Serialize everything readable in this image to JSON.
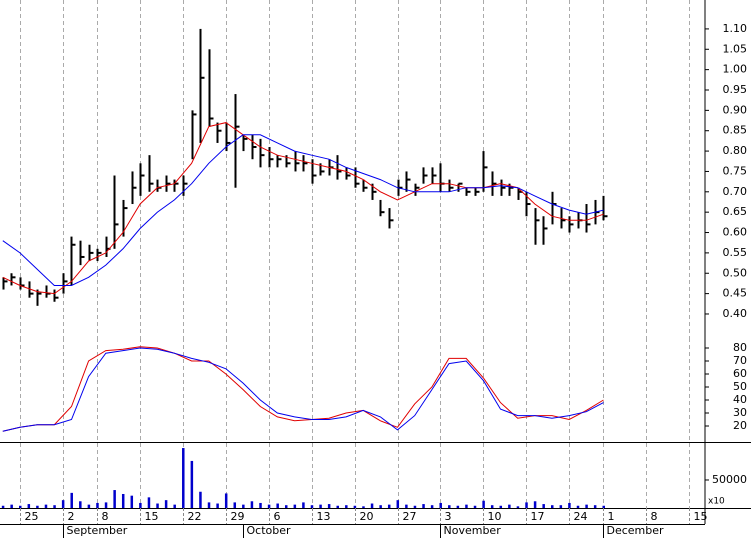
{
  "chart_data": [
    {
      "type": "hlc",
      "xlim": [
        -2.33,
        79.83
      ],
      "ylim": [
        0.341,
        1.171
      ],
      "yticks": [
        {
          "value": 0.4,
          "label": "0.40"
        },
        0.45,
        {
          "value": 0.5,
          "label": "0.50"
        },
        0.55,
        {
          "value": 0.6,
          "label": "0.60"
        },
        0.65,
        {
          "value": 0.7,
          "label": "0.70"
        },
        0.75,
        {
          "value": 0.8,
          "label": "0.80"
        },
        0.85,
        {
          "value": 0.9,
          "label": "0.90"
        },
        0.95,
        {
          "value": 1.0,
          "label": "1.00"
        },
        1.05,
        {
          "value": 1.1,
          "label": "1.10"
        }
      ],
      "grid": true,
      "color": "#000000",
      "x": [
        -2,
        -1,
        0,
        1,
        2,
        3,
        4,
        5,
        6,
        7,
        8,
        9,
        10,
        11,
        12,
        13,
        14,
        15,
        16,
        17,
        18,
        19,
        20,
        21,
        22,
        23,
        24,
        25,
        26,
        27,
        28,
        29,
        30,
        31,
        32,
        33,
        34,
        35,
        36,
        37,
        38,
        39,
        40,
        41,
        42,
        43,
        44,
        45,
        46,
        47,
        48,
        49,
        50,
        51,
        52,
        53,
        54,
        55,
        56,
        57,
        58,
        59,
        60,
        61,
        62,
        63,
        64,
        65,
        66,
        67,
        68
      ],
      "high": [
        0.49,
        0.5,
        0.49,
        0.48,
        0.46,
        0.47,
        0.46,
        0.5,
        0.59,
        0.58,
        0.57,
        0.56,
        0.59,
        0.74,
        0.68,
        0.75,
        0.77,
        0.79,
        0.73,
        0.74,
        0.73,
        0.74,
        0.9,
        1.1,
        1.05,
        0.87,
        0.87,
        0.94,
        0.84,
        0.84,
        0.83,
        0.81,
        0.79,
        0.79,
        0.8,
        0.79,
        0.78,
        0.77,
        0.78,
        0.79,
        0.76,
        0.76,
        0.73,
        0.72,
        0.68,
        0.66,
        0.73,
        0.75,
        0.72,
        0.76,
        0.76,
        0.77,
        0.73,
        0.72,
        0.71,
        0.71,
        0.8,
        0.75,
        0.73,
        0.72,
        0.71,
        0.7,
        0.66,
        0.64,
        0.7,
        0.66,
        0.64,
        0.65,
        0.67,
        0.68,
        0.69
      ],
      "low": [
        0.46,
        0.47,
        0.46,
        0.44,
        0.42,
        0.44,
        0.43,
        0.45,
        0.47,
        0.52,
        0.53,
        0.53,
        0.54,
        0.56,
        0.59,
        0.67,
        0.69,
        0.7,
        0.7,
        0.7,
        0.7,
        0.69,
        0.78,
        0.82,
        0.86,
        0.82,
        0.8,
        0.71,
        0.8,
        0.78,
        0.76,
        0.76,
        0.76,
        0.76,
        0.75,
        0.75,
        0.72,
        0.74,
        0.74,
        0.73,
        0.73,
        0.71,
        0.7,
        0.68,
        0.64,
        0.61,
        0.69,
        0.7,
        0.69,
        0.72,
        0.72,
        0.7,
        0.7,
        0.7,
        0.69,
        0.69,
        0.7,
        0.69,
        0.69,
        0.69,
        0.68,
        0.64,
        0.57,
        0.57,
        0.62,
        0.61,
        0.6,
        0.61,
        0.6,
        0.62,
        0.63
      ],
      "close": [
        0.48,
        0.49,
        0.47,
        0.45,
        0.45,
        0.45,
        0.44,
        0.48,
        0.57,
        0.54,
        0.55,
        0.55,
        0.56,
        0.62,
        0.66,
        0.71,
        0.74,
        0.72,
        0.71,
        0.72,
        0.72,
        0.72,
        0.89,
        0.98,
        0.88,
        0.85,
        0.82,
        0.86,
        0.83,
        0.81,
        0.79,
        0.78,
        0.78,
        0.77,
        0.77,
        0.77,
        0.74,
        0.75,
        0.76,
        0.75,
        0.74,
        0.72,
        0.71,
        0.7,
        0.65,
        0.63,
        0.71,
        0.73,
        0.71,
        0.74,
        0.74,
        0.72,
        0.71,
        0.72,
        0.7,
        0.7,
        0.76,
        0.72,
        0.71,
        0.71,
        0.7,
        0.67,
        0.63,
        0.61,
        0.67,
        0.63,
        0.62,
        0.63,
        0.62,
        0.65,
        0.64
      ],
      "lines": [
        {
          "color": "#e00000",
          "x": [
            -2,
            0,
            2,
            4,
            6,
            8,
            10,
            12,
            14,
            16,
            18,
            20,
            22,
            24,
            26,
            28,
            30,
            32,
            34,
            36,
            38,
            40,
            42,
            44,
            46,
            48,
            50,
            52,
            54,
            56,
            58,
            60,
            62,
            64,
            66,
            68
          ],
          "values": [
            0.49,
            0.47,
            0.455,
            0.45,
            0.48,
            0.53,
            0.55,
            0.6,
            0.67,
            0.71,
            0.72,
            0.77,
            0.86,
            0.87,
            0.84,
            0.81,
            0.79,
            0.78,
            0.77,
            0.76,
            0.75,
            0.73,
            0.7,
            0.68,
            0.7,
            0.72,
            0.72,
            0.71,
            0.71,
            0.72,
            0.71,
            0.67,
            0.64,
            0.63,
            0.63,
            0.645
          ]
        },
        {
          "color": "#0000ee",
          "x": [
            -2,
            0,
            2,
            4,
            6,
            8,
            10,
            12,
            14,
            16,
            18,
            20,
            22,
            24,
            26,
            28,
            30,
            32,
            34,
            36,
            38,
            40,
            42,
            44,
            46,
            48,
            50,
            52,
            54,
            56,
            58,
            60,
            62,
            64,
            66,
            68
          ],
          "values": [
            0.58,
            0.55,
            0.51,
            0.47,
            0.47,
            0.49,
            0.52,
            0.56,
            0.61,
            0.65,
            0.68,
            0.72,
            0.77,
            0.81,
            0.84,
            0.84,
            0.82,
            0.8,
            0.79,
            0.78,
            0.76,
            0.745,
            0.73,
            0.71,
            0.7,
            0.7,
            0.7,
            0.71,
            0.71,
            0.715,
            0.71,
            0.69,
            0.67,
            0.655,
            0.645,
            0.655
          ]
        }
      ]
    },
    {
      "type": "line",
      "xlim": [
        -2.33,
        79.83
      ],
      "ylim": [
        7.7,
        87.7
      ],
      "yticks": [
        20,
        30,
        40,
        50,
        60,
        70,
        80
      ],
      "grid": true,
      "series": [
        {
          "color": "#e00000",
          "x": [
            -2,
            0,
            2,
            4,
            6,
            8,
            10,
            12,
            14,
            16,
            18,
            20,
            22,
            24,
            26,
            28,
            30,
            32,
            34,
            36,
            38,
            40,
            42,
            44,
            46,
            48,
            50,
            52,
            54,
            56,
            58,
            60,
            62,
            64,
            66,
            68
          ],
          "values": [
            16,
            19,
            21,
            21,
            35,
            70,
            78,
            79,
            81,
            80,
            76,
            70,
            70,
            60,
            48,
            35,
            27,
            24,
            25,
            26,
            30,
            32,
            24,
            19,
            37,
            50,
            72,
            72,
            57,
            38,
            26,
            28,
            28,
            25,
            32,
            40
          ]
        },
        {
          "color": "#0000ee",
          "x": [
            -2,
            0,
            2,
            4,
            6,
            8,
            10,
            12,
            14,
            16,
            18,
            20,
            22,
            24,
            26,
            28,
            30,
            32,
            34,
            36,
            38,
            40,
            42,
            44,
            46,
            48,
            50,
            52,
            54,
            56,
            58,
            60,
            62,
            64,
            66,
            68
          ],
          "values": [
            16,
            19,
            21,
            21,
            25,
            58,
            76,
            78,
            80,
            79,
            76,
            72,
            69,
            64,
            53,
            40,
            30,
            27,
            25,
            25,
            27,
            32,
            27,
            17,
            28,
            48,
            68,
            70,
            55,
            33,
            28,
            28,
            26,
            28,
            31,
            38
          ]
        }
      ]
    },
    {
      "type": "bar",
      "xlim": [
        -2.33,
        79.83
      ],
      "ylim": [
        0,
        116000
      ],
      "yticks": [
        50000
      ],
      "grid": true,
      "color": "#0000cc",
      "annotation": "x10",
      "x": [
        -2,
        -1,
        0,
        1,
        2,
        3,
        4,
        5,
        6,
        7,
        8,
        9,
        10,
        11,
        12,
        13,
        14,
        15,
        16,
        17,
        18,
        19,
        20,
        21,
        22,
        23,
        24,
        25,
        26,
        27,
        28,
        29,
        30,
        31,
        32,
        33,
        34,
        35,
        36,
        37,
        38,
        39,
        40,
        41,
        42,
        43,
        44,
        45,
        46,
        47,
        48,
        49,
        50,
        51,
        52,
        53,
        54,
        55,
        56,
        57,
        58,
        59,
        60,
        61,
        62,
        63,
        64,
        65,
        66,
        67,
        68
      ],
      "values": [
        4000,
        6000,
        4000,
        7000,
        4000,
        6000,
        5000,
        14000,
        27000,
        12000,
        6000,
        9000,
        10000,
        32000,
        25000,
        22000,
        9000,
        19000,
        8000,
        14000,
        6000,
        107000,
        84000,
        29000,
        10000,
        8000,
        26000,
        10000,
        6000,
        12000,
        9000,
        6000,
        8000,
        5000,
        6000,
        10000,
        5000,
        6000,
        7000,
        4000,
        5000,
        4000,
        3000,
        8000,
        5000,
        6000,
        14000,
        6000,
        4000,
        7000,
        5000,
        9000,
        5000,
        4000,
        6000,
        4000,
        13000,
        5000,
        4000,
        6000,
        3000,
        10000,
        12000,
        7000,
        5000,
        5000,
        9000,
        4000,
        6000,
        5000,
        4000
      ],
      "xticks": [
        {
          "value": 0,
          "label": "25"
        },
        {
          "value": 5,
          "label": "2"
        },
        {
          "value": 9,
          "label": "8"
        },
        {
          "value": 14,
          "label": "15"
        },
        {
          "value": 19,
          "label": "22"
        },
        {
          "value": 24,
          "label": "29"
        },
        {
          "value": 29,
          "label": "6"
        },
        {
          "value": 34,
          "label": "13"
        },
        {
          "value": 39,
          "label": "20"
        },
        {
          "value": 44,
          "label": "27"
        },
        {
          "value": 49,
          "label": "3"
        },
        {
          "value": 54,
          "label": "10"
        },
        {
          "value": 59,
          "label": "17"
        },
        {
          "value": 64,
          "label": "24"
        },
        {
          "value": 68,
          "label": "1"
        },
        {
          "value": 73,
          "label": "8"
        },
        {
          "value": 78,
          "label": "15"
        }
      ],
      "month_ticks": [
        {
          "value": 5,
          "label": "September"
        },
        {
          "value": 26,
          "label": "October"
        },
        {
          "value": 49,
          "label": "November"
        },
        {
          "value": 68,
          "label": "December"
        }
      ]
    }
  ]
}
